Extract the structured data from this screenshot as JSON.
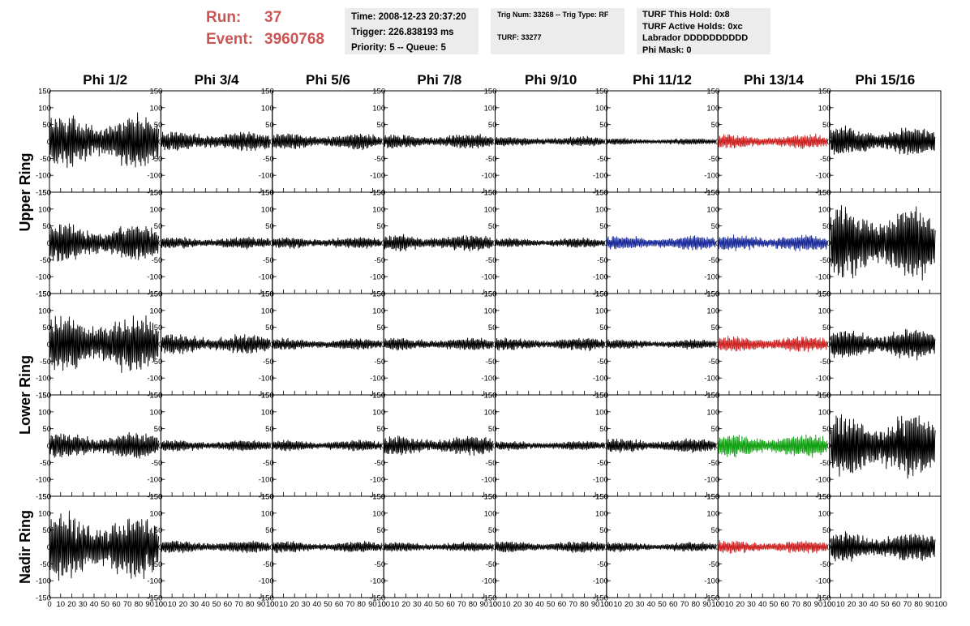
{
  "header": {
    "run_label": "Run:",
    "run_value": "37",
    "event_label": "Event:",
    "event_value": "3960768"
  },
  "info": {
    "time_line": "Time: 2008-12-23 20:37:20",
    "trigger_line": "Trigger: 226.838193 ms",
    "priority_line": "Priority: 5 -- Queue: 5",
    "trig_line": "Trig Num: 33268 -- Trig Type: RF",
    "turf_line": "TURF: 33277",
    "turf_hold_line": "TURF This Hold: 0x8",
    "turf_active_line": "TURF Active Holds: 0xc",
    "labrador_line": "Labrador DDDDDDDDDD",
    "phi_mask_line": "Phi Mask: 0"
  },
  "colors": {
    "default_trace": "#000000",
    "red_trace": "#cc2222",
    "blue_trace": "#1a2a99",
    "green_trace": "#11a011",
    "run_text": "#cc5555",
    "info_box_bg": "#ececec"
  },
  "chart_data": {
    "type": "line",
    "columns": [
      "Phi 1/2",
      "Phi 3/4",
      "Phi 5/6",
      "Phi 7/8",
      "Phi 9/10",
      "Phi 11/12",
      "Phi 13/14",
      "Phi 15/16"
    ],
    "rows": [
      "Upper Ring",
      "Upper Ring",
      "Lower Ring",
      "Lower Ring",
      "Nadir Ring"
    ],
    "row_labels": [
      "Upper Ring",
      "Lower Ring",
      "Nadir Ring"
    ],
    "xlim": [
      0,
      100
    ],
    "ylim": [
      -150,
      150
    ],
    "x_ticks": [
      "0",
      "10",
      "20",
      "30",
      "40",
      "50",
      "60",
      "70",
      "80",
      "90",
      "100"
    ],
    "y_ticks": [
      "150",
      "100",
      "50",
      "0",
      "-50",
      "-100",
      "-150"
    ],
    "grid": false,
    "panel_amplitudes": [
      [
        80,
        30,
        25,
        22,
        15,
        10,
        22,
        45
      ],
      [
        60,
        18,
        18,
        25,
        15,
        22,
        25,
        110
      ],
      [
        85,
        30,
        18,
        20,
        20,
        15,
        25,
        45
      ],
      [
        40,
        18,
        18,
        30,
        15,
        22,
        35,
        95
      ],
      [
        100,
        20,
        18,
        15,
        18,
        15,
        20,
        45
      ]
    ],
    "panel_colors": [
      [
        "default",
        "default",
        "default",
        "default",
        "default",
        "default",
        "red",
        "default"
      ],
      [
        "default",
        "default",
        "default",
        "default",
        "default",
        "blue",
        "blue",
        "default"
      ],
      [
        "default",
        "default",
        "default",
        "default",
        "default",
        "default",
        "red",
        "default"
      ],
      [
        "default",
        "default",
        "default",
        "default",
        "default",
        "default",
        "green",
        "default"
      ],
      [
        "default",
        "default",
        "default",
        "default",
        "default",
        "default",
        "red",
        "default"
      ]
    ]
  }
}
